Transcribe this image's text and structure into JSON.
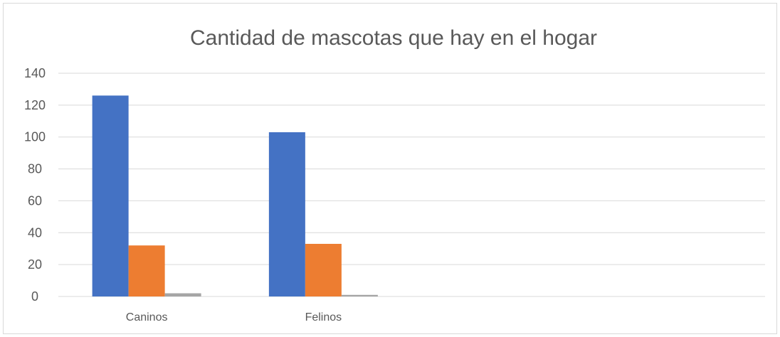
{
  "chart_data": {
    "type": "bar",
    "title": "Cantidad de mascotas que hay en el hogar",
    "xlabel": "",
    "ylabel": "",
    "categories": [
      "Caninos",
      "Felinos",
      "",
      ""
    ],
    "series": [
      {
        "values": [
          126,
          103,
          null,
          null
        ],
        "color": "#4472c4"
      },
      {
        "values": [
          32,
          33,
          null,
          null
        ],
        "color": "#ed7d31"
      },
      {
        "values": [
          2,
          1,
          null,
          null
        ],
        "color": "#a5a5a5"
      }
    ],
    "ylim": [
      0,
      140
    ],
    "yticks": [
      0,
      20,
      40,
      60,
      80,
      100,
      120,
      140
    ],
    "grid": true,
    "legend": "none"
  }
}
